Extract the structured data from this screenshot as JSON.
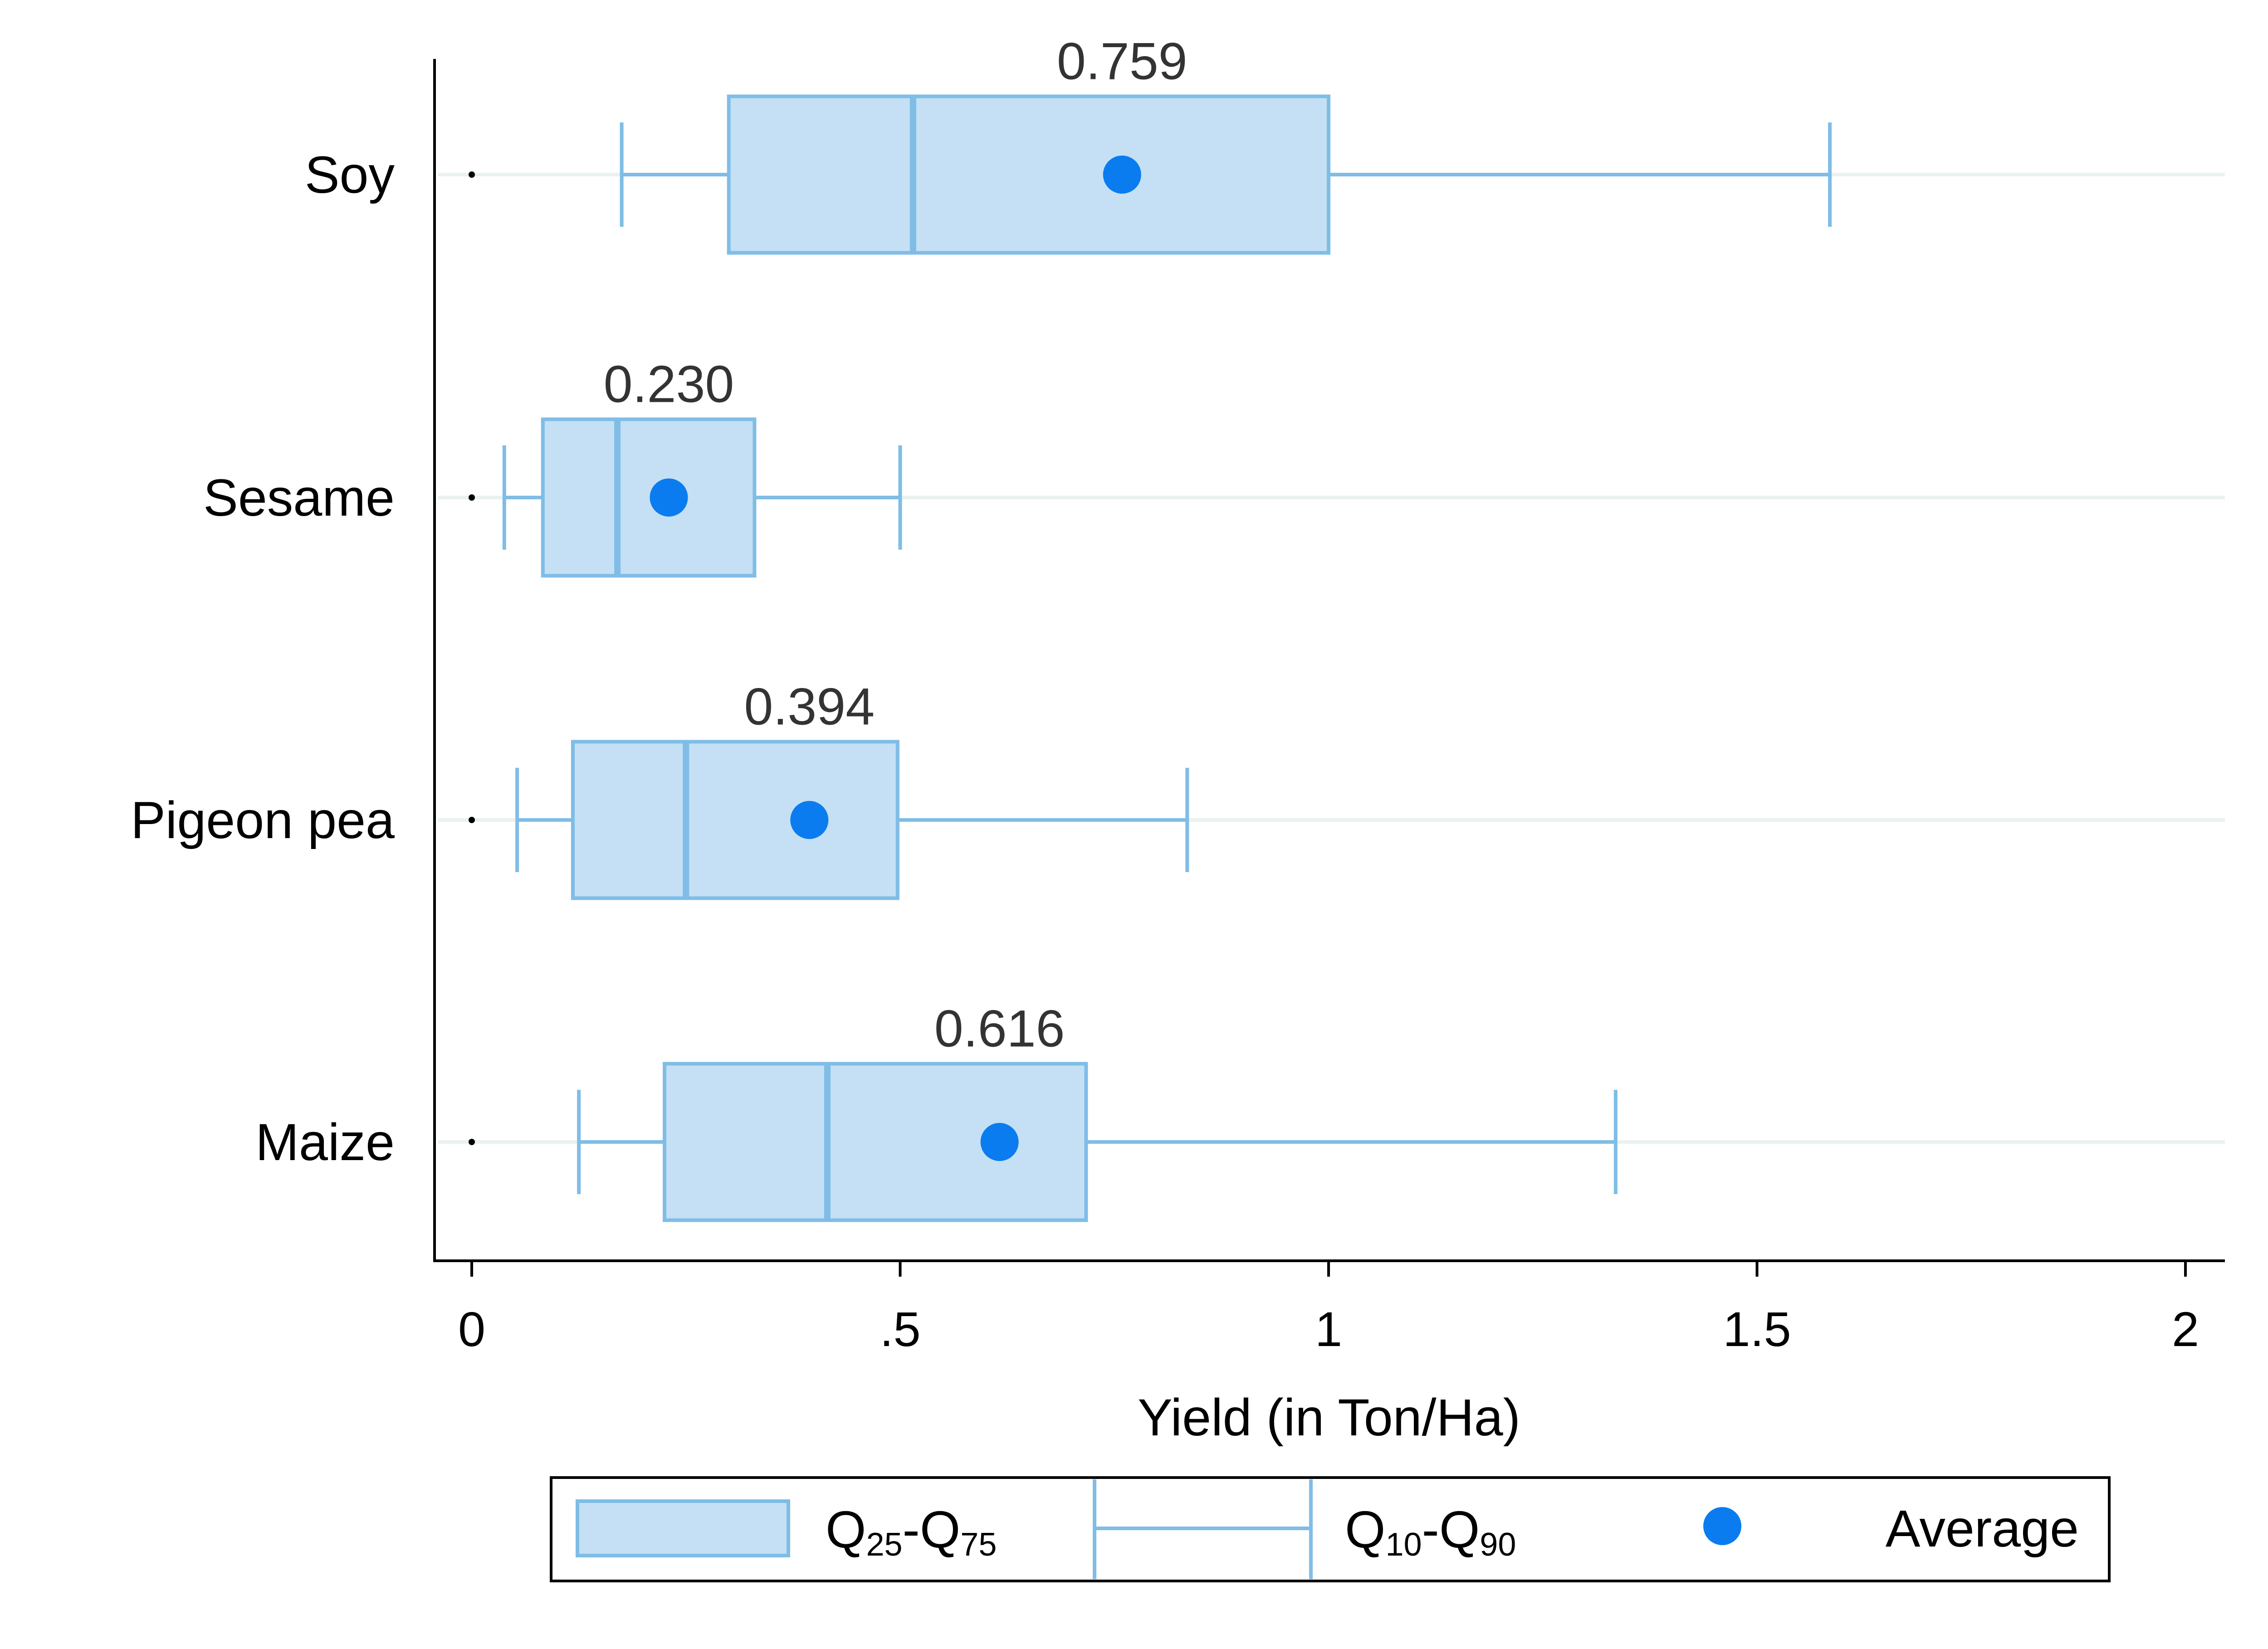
{
  "chart_data": {
    "type": "boxplot",
    "orientation": "horizontal",
    "xlabel": "Yield (in Ton/Ha)",
    "xlim": [
      0,
      2
    ],
    "xticks": [
      0,
      0.5,
      1,
      1.5,
      2
    ],
    "xtick_labels": [
      "0",
      ".5",
      "1",
      "1.5",
      "2"
    ],
    "grid": "horizontal lines at each category",
    "legend_placement": "bottom",
    "categories": [
      "Soy",
      "Sesame",
      "Pigeon pea",
      "Maize"
    ],
    "series": [
      {
        "category": "Soy",
        "q10": 0.175,
        "q25": 0.3,
        "median": 0.515,
        "q75": 1.0,
        "q90": 1.585,
        "min": 0.0,
        "mean": 0.759,
        "mean_label": "0.759"
      },
      {
        "category": "Sesame",
        "q10": 0.038,
        "q25": 0.083,
        "median": 0.17,
        "q75": 0.33,
        "q90": 0.5,
        "min": 0.0,
        "mean": 0.23,
        "mean_label": "0.230"
      },
      {
        "category": "Pigeon pea",
        "q10": 0.053,
        "q25": 0.118,
        "median": 0.25,
        "q75": 0.497,
        "q90": 0.835,
        "min": 0.0,
        "mean": 0.394,
        "mean_label": "0.394"
      },
      {
        "category": "Maize",
        "q10": 0.125,
        "q25": 0.225,
        "median": 0.415,
        "q75": 0.717,
        "q90": 1.335,
        "min": 0.0,
        "mean": 0.616,
        "mean_label": "0.616"
      }
    ],
    "legend": [
      {
        "key": "box",
        "label_main": "Q",
        "sub1": "25",
        "mid": "-Q",
        "sub2": "75"
      },
      {
        "key": "whisker",
        "label_main": "Q",
        "sub1": "10",
        "mid": "-Q",
        "sub2": "90"
      },
      {
        "key": "mean",
        "label": "Average"
      }
    ],
    "colors": {
      "box_fill": "#c5e0f4",
      "box_stroke": "#7fbde6",
      "mean_dot": "#0a7cf0",
      "grid": "#eaf2f0",
      "axis": "#000000"
    }
  }
}
